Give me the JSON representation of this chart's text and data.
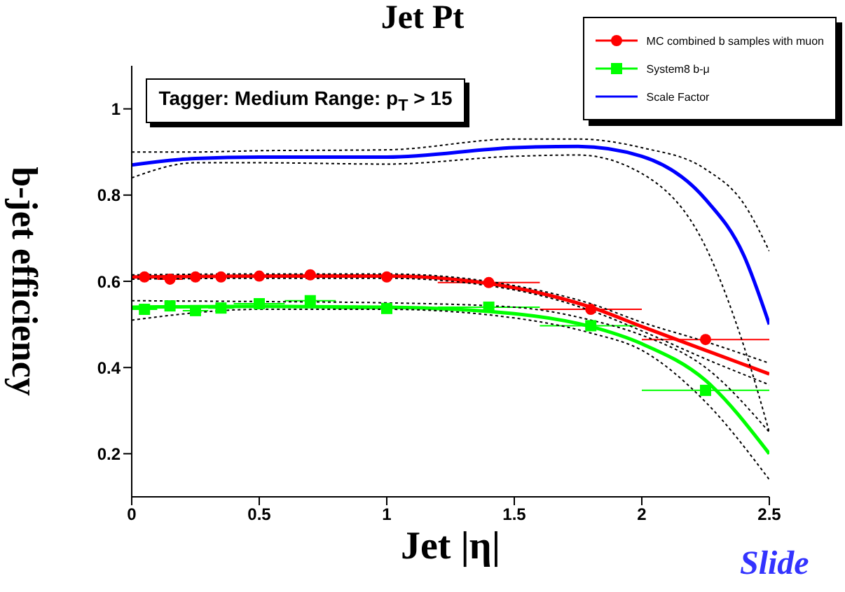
{
  "chart_data": {
    "type": "scatter",
    "title": "Jet Pt",
    "xlabel": "Jet |η|",
    "ylabel": "b-jet efficiency",
    "annotations": [
      "Tagger: Medium Range: p$_{T}$ > 15",
      "Slide"
    ],
    "xlim": [
      0,
      2.5
    ],
    "xticks": [
      0,
      0.5,
      1,
      1.5,
      2,
      2.5
    ],
    "ylim": [
      0.1,
      1.1
    ],
    "yticks": [
      0.2,
      0.4,
      0.6,
      0.8,
      1
    ],
    "legend": "top right",
    "series": [
      {
        "name": "MC combined b samples with muon",
        "marker": "circle",
        "color": "#ff0000",
        "x": [
          0.05,
          0.15,
          0.25,
          0.35,
          0.5,
          0.7,
          1.0,
          1.4,
          1.8,
          2.25
        ],
        "values": [
          0.61,
          0.605,
          0.61,
          0.61,
          0.612,
          0.615,
          0.61,
          0.597,
          0.535,
          0.465
        ],
        "xerrors": [
          0.05,
          0.05,
          0.05,
          0.05,
          0.1,
          0.1,
          0.2,
          0.2,
          0.2,
          0.25
        ]
      },
      {
        "name": "System8 b-μ",
        "marker": "square",
        "color": "#00ff00",
        "x": [
          0.05,
          0.15,
          0.25,
          0.35,
          0.5,
          0.7,
          1.0,
          1.4,
          1.8,
          2.25
        ],
        "values": [
          0.535,
          0.543,
          0.532,
          0.538,
          0.548,
          0.555,
          0.537,
          0.54,
          0.497,
          0.347
        ],
        "xerrors": [
          0.05,
          0.05,
          0.05,
          0.05,
          0.1,
          0.1,
          0.2,
          0.2,
          0.2,
          0.25
        ]
      },
      {
        "type": "line",
        "marker": "none",
        "color": "#ff0000",
        "x": [
          0,
          0.5,
          1,
          1.5,
          1.8,
          2,
          2.25,
          2.5
        ],
        "values": [
          0.61,
          0.612,
          0.612,
          0.585,
          0.54,
          0.495,
          0.44,
          0.385
        ]
      },
      {
        "type": "line",
        "marker": "none",
        "line_style": "dotted",
        "color": "#000000",
        "x": [
          0,
          0.5,
          1,
          1.5,
          1.8,
          2,
          2.25,
          2.5
        ],
        "values": [
          0.605,
          0.607,
          0.607,
          0.58,
          0.532,
          0.485,
          0.42,
          0.36
        ]
      },
      {
        "type": "line",
        "marker": "none",
        "line_style": "dotted",
        "color": "#000000",
        "x": [
          0,
          0.5,
          1,
          1.5,
          1.8,
          2,
          2.25,
          2.5
        ],
        "values": [
          0.615,
          0.617,
          0.617,
          0.59,
          0.548,
          0.505,
          0.46,
          0.41
        ]
      },
      {
        "type": "line",
        "marker": "none",
        "color": "#00ff00",
        "x": [
          0,
          0.5,
          1,
          1.5,
          1.8,
          2,
          2.25,
          2.5
        ],
        "values": [
          0.54,
          0.542,
          0.54,
          0.525,
          0.495,
          0.455,
          0.37,
          0.2
        ]
      },
      {
        "type": "line",
        "marker": "none",
        "line_style": "dotted",
        "color": "#000000",
        "x": [
          0,
          0.5,
          1,
          1.5,
          1.8,
          2,
          2.25,
          2.5
        ],
        "values": [
          0.51,
          0.535,
          0.535,
          0.515,
          0.48,
          0.44,
          0.32,
          0.14
        ]
      },
      {
        "type": "line",
        "marker": "none",
        "line_style": "dotted",
        "color": "#000000",
        "x": [
          0,
          0.5,
          1,
          1.5,
          1.8,
          2,
          2.25,
          2.5
        ],
        "values": [
          0.555,
          0.553,
          0.55,
          0.54,
          0.51,
          0.475,
          0.4,
          0.25
        ]
      },
      {
        "name": "Scale Factor",
        "type": "line",
        "marker": "none",
        "color": "#0000ff",
        "x": [
          0,
          0.25,
          0.5,
          1,
          1.5,
          1.75,
          2,
          2.25,
          2.4,
          2.5
        ],
        "values": [
          0.87,
          0.885,
          0.888,
          0.888,
          0.91,
          0.913,
          0.89,
          0.79,
          0.66,
          0.5
        ]
      },
      {
        "type": "line",
        "marker": "none",
        "line_style": "dotted",
        "color": "#000000",
        "x": [
          0,
          0.25,
          0.5,
          1,
          1.5,
          1.75,
          2,
          2.25,
          2.4,
          2.5
        ],
        "values": [
          0.84,
          0.875,
          0.875,
          0.872,
          0.89,
          0.893,
          0.85,
          0.68,
          0.45,
          0.25
        ]
      },
      {
        "type": "line",
        "marker": "none",
        "line_style": "dotted",
        "color": "#000000",
        "x": [
          0,
          0.25,
          0.5,
          1,
          1.5,
          1.75,
          2,
          2.25,
          2.4,
          2.5
        ],
        "values": [
          0.9,
          0.9,
          0.903,
          0.905,
          0.93,
          0.93,
          0.91,
          0.86,
          0.78,
          0.67
        ]
      }
    ]
  }
}
